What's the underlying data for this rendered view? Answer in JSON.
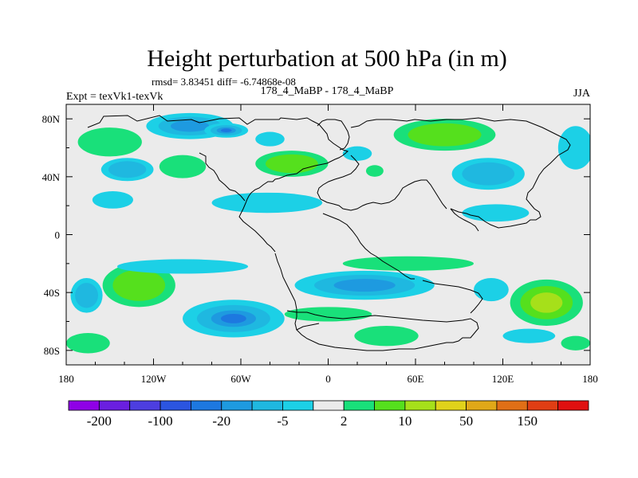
{
  "chart_data": {
    "type": "heatmap",
    "title": "Height perturbation at 500 hPa (in m)",
    "stats_text": "rmsd= 3.83451  diff= -6.74868e-08",
    "left_label": "Expt = texVk1-texVk",
    "center_label": "178_4_MaBP - 178_4_MaBP",
    "right_label": "JJA",
    "xlim": [
      -180,
      180
    ],
    "ylim": [
      -90,
      90
    ],
    "x_ticks": [
      {
        "value": -180,
        "label": "180"
      },
      {
        "value": -120,
        "label": "120W"
      },
      {
        "value": -60,
        "label": "60W"
      },
      {
        "value": 0,
        "label": "0"
      },
      {
        "value": 60,
        "label": "60E"
      },
      {
        "value": 120,
        "label": "120E"
      },
      {
        "value": 180,
        "label": "180"
      }
    ],
    "y_ticks": [
      {
        "value": 80,
        "label": "80N"
      },
      {
        "value": 40,
        "label": "40N"
      },
      {
        "value": 0,
        "label": "0"
      },
      {
        "value": -40,
        "label": "40S"
      },
      {
        "value": -80,
        "label": "80S"
      }
    ],
    "colorbar": {
      "colors": [
        "#8f00e6",
        "#6a1fe0",
        "#4d3ee0",
        "#2b55e0",
        "#1d78e0",
        "#1e9ae0",
        "#1fb8e0",
        "#1cd0e6",
        "#ebebeb",
        "#19e07a",
        "#55e01d",
        "#a6e01a",
        "#e0d21a",
        "#e0a818",
        "#e06f16",
        "#e03e14",
        "#e01010"
      ],
      "labels": [
        {
          "boundary": 1,
          "label": "-200"
        },
        {
          "boundary": 3,
          "label": "-100"
        },
        {
          "boundary": 5,
          "label": "-20"
        },
        {
          "boundary": 7,
          "label": "-5"
        },
        {
          "boundary": 9,
          "label": "2"
        },
        {
          "boundary": 11,
          "label": "10"
        },
        {
          "boundary": 13,
          "label": "50"
        },
        {
          "boundary": 15,
          "label": "150"
        }
      ]
    },
    "anomalies": [
      {
        "lon": -95,
        "lat": 75,
        "rlon": 30,
        "rlat": 9,
        "value": -12
      },
      {
        "lon": -70,
        "lat": 72,
        "rlon": 15,
        "rlat": 5,
        "value": -22
      },
      {
        "lon": -150,
        "lat": 64,
        "rlon": 22,
        "rlat": 10,
        "value": 12
      },
      {
        "lon": -138,
        "lat": 45,
        "rlon": 18,
        "rlat": 8,
        "value": -6
      },
      {
        "lon": -148,
        "lat": 24,
        "rlon": 14,
        "rlat": 6,
        "value": -3
      },
      {
        "lon": -100,
        "lat": 47,
        "rlon": 16,
        "rlat": 8,
        "value": 8
      },
      {
        "lon": -25,
        "lat": 49,
        "rlon": 25,
        "rlat": 9,
        "value": 14
      },
      {
        "lon": -42,
        "lat": 22,
        "rlon": 38,
        "rlat": 7,
        "value": -4
      },
      {
        "lon": -40,
        "lat": 66,
        "rlon": 10,
        "rlat": 5,
        "value": -5
      },
      {
        "lon": 20,
        "lat": 56,
        "rlon": 10,
        "rlat": 5,
        "value": -5
      },
      {
        "lon": 32,
        "lat": 44,
        "rlon": 6,
        "rlat": 4,
        "value": 4
      },
      {
        "lon": 80,
        "lat": 69,
        "rlon": 35,
        "rlat": 11,
        "value": 20
      },
      {
        "lon": 110,
        "lat": 42,
        "rlon": 25,
        "rlat": 11,
        "value": -8
      },
      {
        "lon": 115,
        "lat": 15,
        "rlon": 23,
        "rlat": 6,
        "value": -4
      },
      {
        "lon": 170,
        "lat": 60,
        "rlon": 12,
        "rlat": 15,
        "value": -4
      },
      {
        "lon": -130,
        "lat": -35,
        "rlon": 25,
        "rlat": 15,
        "value": 25
      },
      {
        "lon": -166,
        "lat": -42,
        "rlon": 11,
        "rlat": 12,
        "value": -8
      },
      {
        "lon": -65,
        "lat": -58,
        "rlon": 35,
        "rlat": 13,
        "value": -22
      },
      {
        "lon": -100,
        "lat": -22,
        "rlon": 45,
        "rlat": 5,
        "value": -4
      },
      {
        "lon": 25,
        "lat": -35,
        "rlon": 48,
        "rlat": 10,
        "value": -12
      },
      {
        "lon": 55,
        "lat": -20,
        "rlon": 45,
        "rlat": 5,
        "value": 5
      },
      {
        "lon": 150,
        "lat": -47,
        "rlon": 25,
        "rlat": 16,
        "value": 30
      },
      {
        "lon": 112,
        "lat": -38,
        "rlon": 12,
        "rlat": 8,
        "value": -5
      },
      {
        "lon": 40,
        "lat": -70,
        "rlon": 22,
        "rlat": 7,
        "value": 8
      },
      {
        "lon": -165,
        "lat": -75,
        "rlon": 15,
        "rlat": 7,
        "value": 6
      },
      {
        "lon": 170,
        "lat": -75,
        "rlon": 10,
        "rlat": 5,
        "value": 6
      },
      {
        "lon": 138,
        "lat": -70,
        "rlon": 18,
        "rlat": 5,
        "value": -4
      },
      {
        "lon": 0,
        "lat": -55,
        "rlon": 30,
        "rlat": 5,
        "value": 5
      }
    ]
  }
}
